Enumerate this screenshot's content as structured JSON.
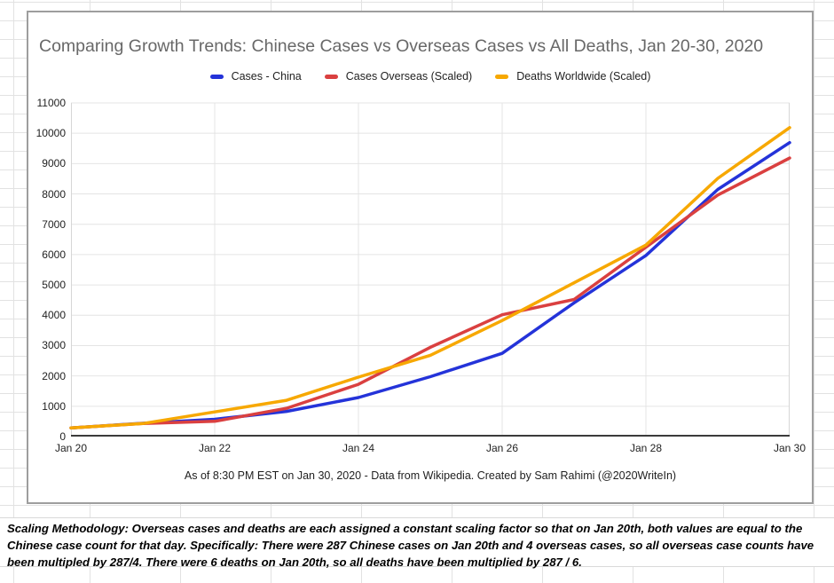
{
  "chart_data": {
    "type": "line",
    "title": "Comparing Growth Trends: Chinese Cases vs Overseas Cases vs All Deaths, Jan 20-30, 2020",
    "caption": "As of 8:30 PM EST on Jan 30, 2020 - Data from Wikipedia. Created by Sam Rahimi (@2020WriteIn)",
    "x": [
      "Jan 20",
      "Jan 21",
      "Jan 22",
      "Jan 23",
      "Jan 24",
      "Jan 25",
      "Jan 26",
      "Jan 27",
      "Jan 28",
      "Jan 29",
      "Jan 30"
    ],
    "x_tick_labels": [
      "Jan 20",
      "Jan 22",
      "Jan 24",
      "Jan 26",
      "Jan 28",
      "Jan 30"
    ],
    "x_tick_positions": [
      0,
      2,
      4,
      6,
      8,
      10
    ],
    "y_ticks": [
      0,
      1000,
      2000,
      3000,
      4000,
      5000,
      6000,
      7000,
      8000,
      9000,
      10000,
      11000
    ],
    "ylim": [
      0,
      11000
    ],
    "grid": true,
    "legend_position": "top",
    "series": [
      {
        "name": "Cases - China",
        "color": "#2433d9",
        "values": [
          287,
          440,
          571,
          830,
          1287,
          1975,
          2744,
          4409,
          5970,
          8149,
          9692
        ]
      },
      {
        "name": "Cases Overseas (Scaled)",
        "color": "#da4040",
        "values": [
          287,
          430,
          502,
          933,
          1722,
          2942,
          4018,
          4520,
          6242,
          7964,
          9184
        ]
      },
      {
        "name": "Deaths Worldwide (Scaled)",
        "color": "#f7a800",
        "values": [
          287,
          430,
          813,
          1196,
          1961,
          2679,
          3827,
          5070,
          6314,
          8514,
          10188
        ]
      }
    ],
    "colors": {
      "gridline": "#e4e4e4",
      "plot_border": "#d6d6d6",
      "axis": "#3b3b3b"
    }
  },
  "methodology": {
    "lines": [
      "Scaling Methodology: Overseas cases and deaths are each assigned a constant scaling factor so that on Jan 20th, both values are equal to the",
      "Chinese case count for that day. Specifically: There were 287 Chinese cases on Jan 20th and 4 overseas cases, so all overseas case counts have",
      "been multipled by 287/4. There were 6 deaths on Jan 20th, so all deaths have been multiplied by 287 / 6."
    ]
  }
}
